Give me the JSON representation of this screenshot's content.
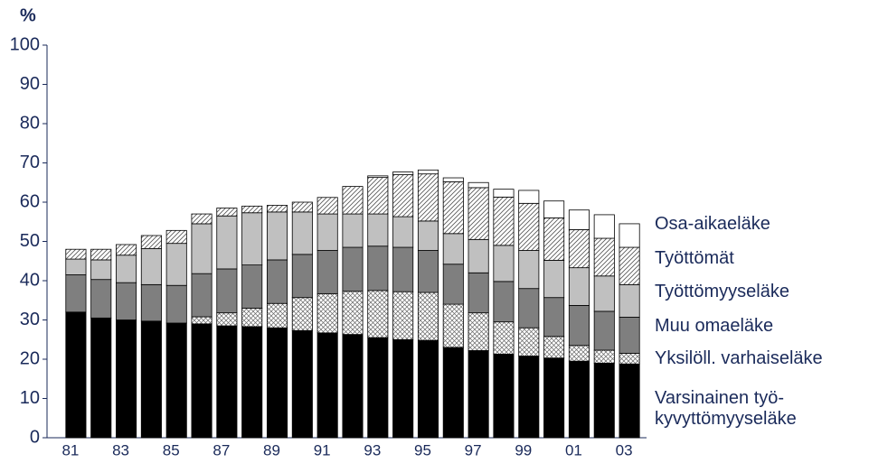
{
  "chart_data": {
    "type": "stacked_bar",
    "y_label": "%",
    "categories": [
      "81",
      null,
      "83",
      null,
      "85",
      null,
      "87",
      null,
      "89",
      null,
      "91",
      null,
      "93",
      null,
      "95",
      null,
      "97",
      null,
      "99",
      null,
      "01",
      null,
      "03"
    ],
    "ylim": [
      0,
      100
    ],
    "yticks": [
      0,
      10,
      20,
      30,
      40,
      50,
      60,
      70,
      80,
      90,
      100
    ],
    "series": [
      {
        "name": "Varsinainen työ-\nkyvyttömyyseläke",
        "color": "#000000",
        "pattern": "solid",
        "values": [
          32,
          30.5,
          30,
          29.7,
          29.2,
          29,
          28.5,
          28.3,
          28,
          27.3,
          26.7,
          26.3,
          25.5,
          25,
          24.8,
          23,
          22.2,
          21.3,
          20.8,
          20.3,
          19.5,
          19,
          18.8
        ]
      },
      {
        "name": "Yksilöll. varhaiseläke",
        "color": "#ffffff",
        "pattern": "crosshatch",
        "values": [
          0,
          0,
          0,
          0,
          0,
          1.8,
          3.3,
          4.7,
          6.2,
          8.4,
          10,
          11,
          12,
          12.2,
          12.2,
          11,
          9.6,
          8.2,
          7.2,
          5.5,
          4,
          3.3,
          2.7
        ]
      },
      {
        "name": "Muu omaeläke",
        "color": "#7f7f7f",
        "pattern": "solid",
        "values": [
          9.5,
          9.8,
          9.5,
          9.3,
          9.6,
          11,
          11.2,
          11,
          11.1,
          11,
          11,
          11.2,
          11.3,
          11.3,
          10.7,
          10.2,
          10.2,
          10.3,
          10,
          9.9,
          10.2,
          9.9,
          9.2
        ]
      },
      {
        "name": "Työttömyyseläke",
        "color": "#c0c0c0",
        "pattern": "solid",
        "values": [
          4,
          5,
          7,
          9.2,
          10.7,
          12.7,
          13.5,
          13.3,
          12.2,
          10.8,
          9.3,
          8.5,
          8.2,
          7.8,
          7.5,
          7.8,
          8.5,
          9.2,
          9.7,
          9.5,
          9.6,
          9,
          8.3
        ]
      },
      {
        "name": "Työttömät",
        "color": "#ffffff",
        "pattern": "diagonal",
        "values": [
          2.5,
          2.7,
          2.7,
          3.3,
          3.3,
          2.5,
          2,
          1.7,
          1.7,
          2.5,
          4.2,
          7,
          9.3,
          10.7,
          12,
          13.2,
          13.2,
          12.3,
          12,
          10.8,
          9.7,
          9.6,
          9.5
        ]
      },
      {
        "name": "Osa-aikaeläke",
        "color": "#ffffff",
        "pattern": "solid",
        "values": [
          0,
          0,
          0,
          0,
          0,
          0,
          0,
          0,
          0,
          0,
          0,
          0,
          0.4,
          0.7,
          1,
          1,
          1.3,
          2,
          3.3,
          4.3,
          5,
          6,
          6
        ]
      }
    ]
  }
}
